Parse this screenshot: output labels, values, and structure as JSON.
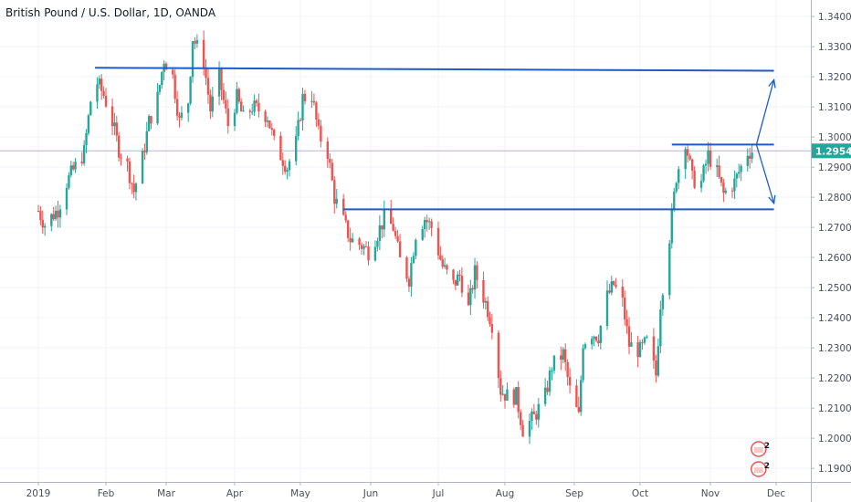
{
  "header": {
    "symbol_title": "British Pound / U.S. Dollar, 1D, OANDA"
  },
  "colors": {
    "up": "#26a69a",
    "down": "#ef5350",
    "trendline": "#1f5bc6",
    "grid": "#f0f3fa",
    "axis_line": "#b2b5be",
    "last_price_line": "#26a69a",
    "last_price_tag": "#26a69a"
  },
  "chart_data": {
    "type": "candlestick",
    "title": "",
    "xlabel": "",
    "ylabel": "",
    "ylim": [
      1.1855,
      1.3455
    ],
    "y_ticks": [
      "1.34000",
      "1.33000",
      "1.32000",
      "1.31000",
      "1.30000",
      "1.29000",
      "1.28000",
      "1.27000",
      "1.26000",
      "1.25000",
      "1.24000",
      "1.23000",
      "1.22000",
      "1.21000",
      "1.20000",
      "1.19000"
    ],
    "x_tick_labels": [
      "2019",
      "Feb",
      "Mar",
      "Apr",
      "May",
      "Jun",
      "Jul",
      "Aug",
      "Sep",
      "Oct",
      "Nov",
      "Dec"
    ],
    "last_price": 1.29541,
    "last_price_label": "1.29541",
    "series": [
      {
        "date": "2019-01-01",
        "close": 1.2755
      },
      {
        "date": "2019-01-04",
        "close": 1.271
      },
      {
        "date": "2019-01-10",
        "close": 1.276
      },
      {
        "date": "2019-01-14",
        "close": 1.285
      },
      {
        "date": "2019-01-17",
        "close": 1.289
      },
      {
        "date": "2019-01-22",
        "close": 1.295
      },
      {
        "date": "2019-01-25",
        "close": 1.312
      },
      {
        "date": "2019-01-28",
        "close": 1.318
      },
      {
        "date": "2019-01-31",
        "close": 1.314
      },
      {
        "date": "2019-02-04",
        "close": 1.305
      },
      {
        "date": "2019-02-07",
        "close": 1.296
      },
      {
        "date": "2019-02-11",
        "close": 1.2905
      },
      {
        "date": "2019-02-14",
        "close": 1.282
      },
      {
        "date": "2019-02-18",
        "close": 1.293
      },
      {
        "date": "2019-02-21",
        "close": 1.305
      },
      {
        "date": "2019-02-25",
        "close": 1.313
      },
      {
        "date": "2019-02-28",
        "close": 1.326
      },
      {
        "date": "2019-03-04",
        "close": 1.32
      },
      {
        "date": "2019-03-07",
        "close": 1.305
      },
      {
        "date": "2019-03-11",
        "close": 1.312
      },
      {
        "date": "2019-03-13",
        "close": 1.333
      },
      {
        "date": "2019-03-18",
        "close": 1.325
      },
      {
        "date": "2019-03-21",
        "close": 1.309
      },
      {
        "date": "2019-03-25",
        "close": 1.32
      },
      {
        "date": "2019-03-29",
        "close": 1.304
      },
      {
        "date": "2019-04-02",
        "close": 1.313
      },
      {
        "date": "2019-04-05",
        "close": 1.306
      },
      {
        "date": "2019-04-09",
        "close": 1.31
      },
      {
        "date": "2019-04-12",
        "close": 1.309
      },
      {
        "date": "2019-04-16",
        "close": 1.307
      },
      {
        "date": "2019-04-19",
        "close": 1.298
      },
      {
        "date": "2019-04-25",
        "close": 1.29
      },
      {
        "date": "2019-04-29",
        "close": 1.298
      },
      {
        "date": "2019-05-02",
        "close": 1.313
      },
      {
        "date": "2019-05-06",
        "close": 1.314
      },
      {
        "date": "2019-05-09",
        "close": 1.301
      },
      {
        "date": "2019-05-13",
        "close": 1.295
      },
      {
        "date": "2019-05-16",
        "close": 1.28
      },
      {
        "date": "2019-05-20",
        "close": 1.272
      },
      {
        "date": "2019-05-23",
        "close": 1.266
      },
      {
        "date": "2019-05-28",
        "close": 1.264
      },
      {
        "date": "2019-05-31",
        "close": 1.262
      },
      {
        "date": "2019-06-04",
        "close": 1.268
      },
      {
        "date": "2019-06-07",
        "close": 1.273
      },
      {
        "date": "2019-06-11",
        "close": 1.27
      },
      {
        "date": "2019-06-14",
        "close": 1.259
      },
      {
        "date": "2019-06-18",
        "close": 1.253
      },
      {
        "date": "2019-06-21",
        "close": 1.268
      },
      {
        "date": "2019-06-25",
        "close": 1.273
      },
      {
        "date": "2019-06-28",
        "close": 1.27
      },
      {
        "date": "2019-07-03",
        "close": 1.257
      },
      {
        "date": "2019-07-08",
        "close": 1.251
      },
      {
        "date": "2019-07-11",
        "close": 1.254
      },
      {
        "date": "2019-07-15",
        "close": 1.243
      },
      {
        "date": "2019-07-18",
        "close": 1.255
      },
      {
        "date": "2019-07-23",
        "close": 1.245
      },
      {
        "date": "2019-07-26",
        "close": 1.238
      },
      {
        "date": "2019-07-30",
        "close": 1.216
      },
      {
        "date": "2019-08-02",
        "close": 1.214
      },
      {
        "date": "2019-08-06",
        "close": 1.214
      },
      {
        "date": "2019-08-09",
        "close": 1.203
      },
      {
        "date": "2019-08-14",
        "close": 1.207
      },
      {
        "date": "2019-08-19",
        "close": 1.214
      },
      {
        "date": "2019-08-22",
        "close": 1.224
      },
      {
        "date": "2019-08-27",
        "close": 1.228
      },
      {
        "date": "2019-08-30",
        "close": 1.216
      },
      {
        "date": "2019-09-03",
        "close": 1.207
      },
      {
        "date": "2019-09-05",
        "close": 1.232
      },
      {
        "date": "2019-09-09",
        "close": 1.235
      },
      {
        "date": "2019-09-12",
        "close": 1.234
      },
      {
        "date": "2019-09-16",
        "close": 1.247
      },
      {
        "date": "2019-09-19",
        "close": 1.251
      },
      {
        "date": "2019-09-23",
        "close": 1.245
      },
      {
        "date": "2019-09-26",
        "close": 1.231
      },
      {
        "date": "2019-10-01",
        "close": 1.229
      },
      {
        "date": "2019-10-04",
        "close": 1.232
      },
      {
        "date": "2019-10-08",
        "close": 1.221
      },
      {
        "date": "2019-10-10",
        "close": 1.245
      },
      {
        "date": "2019-10-14",
        "close": 1.267
      },
      {
        "date": "2019-10-17",
        "close": 1.287
      },
      {
        "date": "2019-10-21",
        "close": 1.299
      },
      {
        "date": "2019-10-24",
        "close": 1.286
      },
      {
        "date": "2019-10-28",
        "close": 1.285
      },
      {
        "date": "2019-10-31",
        "close": 1.294
      },
      {
        "date": "2019-11-04",
        "close": 1.288
      },
      {
        "date": "2019-11-07",
        "close": 1.281
      },
      {
        "date": "2019-11-12",
        "close": 1.285
      },
      {
        "date": "2019-11-15",
        "close": 1.29
      },
      {
        "date": "2019-11-18",
        "close": 1.295
      },
      {
        "date": "2019-11-20",
        "close": 1.2954
      }
    ],
    "drawings": [
      {
        "name": "resistance-line-top",
        "type": "horizontal",
        "from": "2019-01-27",
        "to": "2019-11-30",
        "y1": 1.323,
        "y2": 1.322
      },
      {
        "name": "support-line-mid",
        "type": "horizontal",
        "from": "2019-05-20",
        "to": "2019-11-30",
        "y1": 1.276,
        "y2": 1.276
      },
      {
        "name": "range-top-line",
        "type": "horizontal",
        "from": "2019-10-15",
        "to": "2019-11-30",
        "y1": 1.2975,
        "y2": 1.2975
      },
      {
        "name": "projection-arrow-up",
        "type": "arrow",
        "from": "2019-11-22",
        "to": "2019-11-30",
        "y1": 1.2975,
        "y2": 1.319
      },
      {
        "name": "projection-arrow-down",
        "type": "arrow",
        "from": "2019-11-22",
        "to": "2019-11-30",
        "y1": 1.2975,
        "y2": 1.278
      }
    ],
    "events": [
      {
        "name": "event-badge-1",
        "date": "2019-11-23",
        "label": "2"
      },
      {
        "name": "event-badge-2",
        "date": "2019-11-23",
        "label": "2"
      }
    ]
  }
}
